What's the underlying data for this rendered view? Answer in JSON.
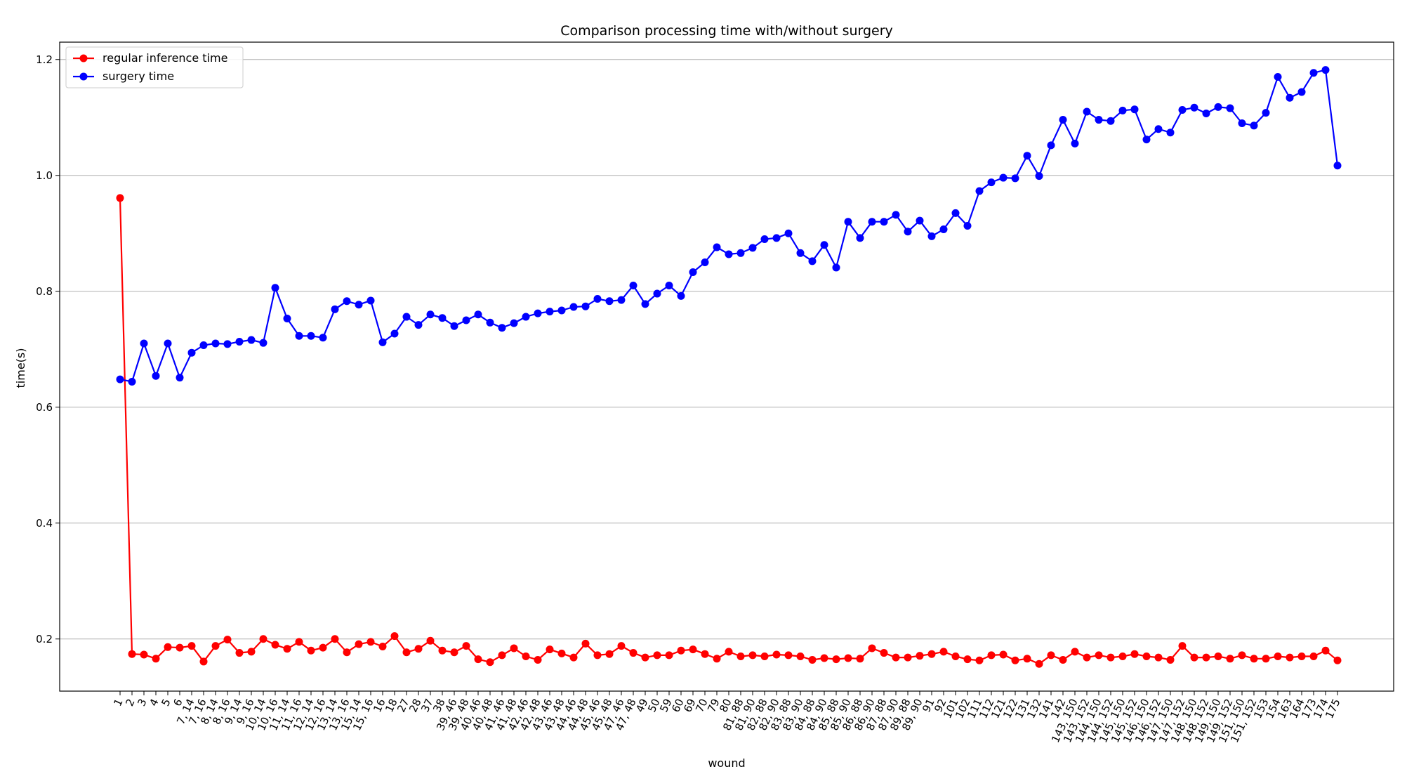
{
  "chart_data": {
    "type": "line",
    "title": "Comparison processing time with/without surgery",
    "xlabel": "wound",
    "ylabel": "time(s)",
    "ylim": [
      0.11,
      1.23
    ],
    "yticks": [
      0.2,
      0.4,
      0.6,
      0.8,
      1.0,
      1.2
    ],
    "ytick_labels": [
      "0.2",
      "0.4",
      "0.6",
      "0.8",
      "1.0",
      "1.2"
    ],
    "grid": "horizontal",
    "legend": "upper-left",
    "categories": [
      "1",
      "2",
      "3",
      "4",
      "5",
      "6",
      "7, 14",
      "7, 16",
      "8, 14",
      "8, 16",
      "9, 14",
      "9, 16",
      "10, 14",
      "10, 16",
      "11, 14",
      "11, 16",
      "12, 14",
      "12, 16",
      "13, 14",
      "13, 16",
      "15, 14",
      "15, 16",
      "16",
      "18",
      "27",
      "28",
      "37",
      "38",
      "39, 46",
      "39, 48",
      "40, 46",
      "40, 48",
      "41, 46",
      "41, 48",
      "42, 46",
      "42, 48",
      "43, 46",
      "43, 48",
      "44, 46",
      "44, 48",
      "45, 46",
      "45, 48",
      "47, 46",
      "47, 48",
      "49",
      "50",
      "59",
      "60",
      "69",
      "70",
      "79",
      "80",
      "81, 88",
      "81, 90",
      "82, 88",
      "82, 90",
      "83, 88",
      "83, 90",
      "84, 88",
      "84, 90",
      "85, 88",
      "85, 90",
      "86, 88",
      "86, 90",
      "87, 88",
      "87, 90",
      "89, 88",
      "89, 90",
      "91",
      "92",
      "101",
      "102",
      "111",
      "112",
      "121",
      "122",
      "131",
      "132",
      "141",
      "142",
      "143, 150",
      "143, 152",
      "144, 150",
      "144, 152",
      "145, 150",
      "145, 152",
      "146, 150",
      "146, 152",
      "147, 150",
      "147, 152",
      "148, 150",
      "148, 152",
      "149, 150",
      "149, 152",
      "151, 150",
      "151, 152",
      "153",
      "154",
      "163",
      "164",
      "173",
      "174",
      "175"
    ],
    "series": [
      {
        "name": "regular inference time",
        "color": "#ff0000",
        "values": [
          0.961,
          0.174,
          0.173,
          0.166,
          0.186,
          0.185,
          0.188,
          0.161,
          0.188,
          0.199,
          0.176,
          0.178,
          0.2,
          0.19,
          0.183,
          0.195,
          0.18,
          0.185,
          0.2,
          0.177,
          0.191,
          0.195,
          0.187,
          0.205,
          0.177,
          0.183,
          0.197,
          0.18,
          0.177,
          0.188,
          0.165,
          0.16,
          0.172,
          0.184,
          0.17,
          0.164,
          0.182,
          0.175,
          0.168,
          0.192,
          0.172,
          0.174,
          0.188,
          0.176,
          0.168,
          0.172,
          0.172,
          0.18,
          0.182,
          0.174,
          0.166,
          0.178,
          0.17,
          0.172,
          0.17,
          0.173,
          0.172,
          0.17,
          0.164,
          0.167,
          0.165,
          0.167,
          0.166,
          0.184,
          0.176,
          0.168,
          0.168,
          0.171,
          0.174,
          0.178,
          0.17,
          0.165,
          0.163,
          0.172,
          0.173,
          0.163,
          0.166,
          0.157,
          0.172,
          0.164,
          0.178,
          0.168,
          0.172,
          0.168,
          0.17,
          0.174,
          0.17,
          0.168,
          0.164,
          0.188,
          0.168,
          0.168,
          0.17,
          0.166,
          0.172,
          0.166,
          0.166,
          0.17,
          0.168,
          0.17,
          0.17,
          0.18,
          0.163
        ]
      },
      {
        "name": "surgery time",
        "color": "#0000ff",
        "values": [
          0.648,
          0.644,
          0.71,
          0.654,
          0.71,
          0.651,
          0.694,
          0.707,
          0.71,
          0.709,
          0.713,
          0.716,
          0.711,
          0.806,
          0.753,
          0.723,
          0.723,
          0.72,
          0.769,
          0.783,
          0.777,
          0.784,
          0.712,
          0.727,
          0.756,
          0.742,
          0.76,
          0.754,
          0.74,
          0.75,
          0.76,
          0.746,
          0.737,
          0.745,
          0.756,
          0.762,
          0.765,
          0.767,
          0.773,
          0.774,
          0.787,
          0.783,
          0.785,
          0.81,
          0.778,
          0.796,
          0.81,
          0.792,
          0.833,
          0.85,
          0.876,
          0.864,
          0.866,
          0.875,
          0.89,
          0.892,
          0.9,
          0.866,
          0.852,
          0.88,
          0.841,
          0.92,
          0.892,
          0.92,
          0.92,
          0.932,
          0.903,
          0.922,
          0.895,
          0.907,
          0.935,
          0.913,
          0.973,
          0.988,
          0.996,
          0.995,
          1.034,
          0.999,
          1.052,
          1.096,
          1.055,
          1.11,
          1.096,
          1.094,
          1.112,
          1.114,
          1.062,
          1.08,
          1.074,
          1.113,
          1.117,
          1.107,
          1.118,
          1.116,
          1.09,
          1.086,
          1.108,
          1.17,
          1.134,
          1.144,
          1.177,
          1.182,
          1.017
        ]
      }
    ]
  }
}
